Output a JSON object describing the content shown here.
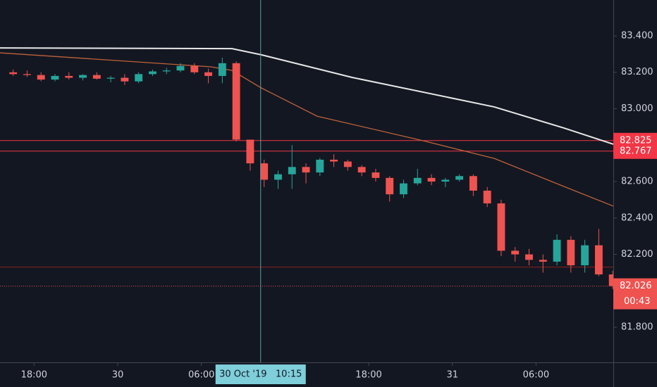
{
  "chart_data": {
    "type": "candlestick",
    "x": [
      -7.5,
      -6.5,
      -5.5,
      -4.5,
      -3.5,
      -2.5,
      -1.5,
      -0.5,
      0.5,
      1.5,
      2.5,
      3.5,
      4.5,
      5.5,
      6.5,
      7.5,
      8.5,
      9.5,
      10.5,
      11.5,
      12.5,
      13.5,
      14.5,
      15.5,
      16.5,
      17.5,
      18.5,
      19.5,
      20.5,
      21.5,
      22.5,
      23.5,
      24.5,
      25.5,
      26.5,
      27.5,
      28.5,
      29.5,
      30.5,
      31.5,
      32.5,
      33.5,
      34.5,
      35.5
    ],
    "open": [
      83.2,
      83.19,
      83.185,
      83.16,
      83.18,
      83.17,
      83.185,
      83.165,
      83.17,
      83.15,
      83.19,
      83.205,
      83.21,
      83.235,
      83.2,
      83.18,
      83.25,
      82.83,
      82.7,
      82.61,
      82.64,
      82.68,
      82.65,
      82.72,
      82.71,
      82.68,
      82.65,
      82.62,
      82.53,
      82.59,
      82.62,
      82.6,
      82.61,
      82.63,
      82.55,
      82.48,
      82.22,
      82.2,
      82.17,
      82.16,
      82.28,
      82.14,
      82.25,
      82.09
    ],
    "high": [
      83.215,
      83.21,
      83.2,
      83.19,
      83.2,
      83.19,
      83.2,
      83.18,
      83.19,
      83.2,
      83.215,
      83.225,
      83.25,
      83.25,
      83.22,
      83.28,
      83.26,
      82.83,
      82.72,
      82.66,
      82.8,
      82.7,
      82.73,
      82.75,
      82.72,
      82.69,
      82.67,
      82.63,
      82.61,
      82.67,
      82.64,
      82.62,
      82.64,
      82.64,
      82.57,
      82.5,
      82.24,
      82.23,
      82.2,
      82.31,
      82.3,
      82.28,
      82.34,
      82.11
    ],
    "low": [
      83.18,
      83.175,
      83.15,
      83.15,
      83.16,
      83.155,
      83.16,
      83.145,
      83.13,
      83.14,
      83.18,
      83.19,
      83.2,
      83.19,
      83.14,
      83.14,
      82.82,
      82.66,
      82.57,
      82.56,
      82.56,
      82.59,
      82.63,
      82.68,
      82.66,
      82.63,
      82.6,
      82.49,
      82.51,
      82.58,
      82.58,
      82.57,
      82.6,
      82.52,
      82.46,
      82.19,
      82.16,
      82.14,
      82.1,
      82.14,
      82.1,
      82.1,
      82.08,
      82.01
    ],
    "close": [
      83.19,
      83.185,
      83.16,
      83.18,
      83.17,
      83.185,
      83.165,
      83.17,
      83.15,
      83.19,
      83.205,
      83.21,
      83.235,
      83.2,
      83.18,
      83.25,
      82.83,
      82.7,
      82.61,
      82.64,
      82.68,
      82.65,
      82.72,
      82.71,
      82.68,
      82.65,
      82.62,
      82.53,
      82.59,
      82.62,
      82.6,
      82.61,
      82.63,
      82.55,
      82.48,
      82.22,
      82.2,
      82.17,
      82.16,
      82.28,
      82.14,
      82.25,
      82.09,
      82.026
    ],
    "up_color": "#26a69a",
    "down_color": "#ef5350",
    "series": [
      {
        "color": "#e8e8e8",
        "x": [
          -8.443,
          8.2,
          10.3,
          16.8,
          27,
          32,
          35.541
        ],
        "values": [
          83.334,
          83.33,
          83.296,
          83.172,
          83.01,
          82.894,
          82.805
        ]
      },
      {
        "color": "#c0623a",
        "x": [
          -8.443,
          6.7,
          8.2,
          10.3,
          14.3,
          21.9,
          27,
          32,
          35.541
        ],
        "values": [
          83.307,
          83.23,
          83.21,
          83.114,
          82.959,
          82.824,
          82.727,
          82.573,
          82.465
        ]
      }
    ],
    "price_lines": [
      {
        "value": 82.825,
        "label": "82.825",
        "color": "#f23645"
      },
      {
        "value": 82.767,
        "label": "82.767",
        "color": "#f23645"
      },
      {
        "value": 82.13,
        "color": "#8b2020"
      }
    ],
    "last_price": {
      "value": 82.026,
      "label": "82.026",
      "countdown": "00:43",
      "color": "#ef5350"
    },
    "crosshair": {
      "value": 10.25,
      "label": "30 Oct '19   10:15"
    },
    "xlim": [
      -8.443,
      35.541
    ],
    "ylim": [
      81.607,
      83.597
    ],
    "xticks": [
      {
        "value": -6,
        "label": "18:00"
      },
      {
        "value": 0,
        "label": "30"
      },
      {
        "value": 6,
        "label": "06:00"
      },
      {
        "value": 18,
        "label": "18:00"
      },
      {
        "value": 24,
        "label": "31"
      },
      {
        "value": 30,
        "label": "06:00"
      }
    ],
    "yticks": [
      {
        "value": 83.4,
        "label": "83.400"
      },
      {
        "value": 83.2,
        "label": "83.200"
      },
      {
        "value": 83.0,
        "label": "83.000"
      },
      {
        "value": 82.6,
        "label": "82.600"
      },
      {
        "value": 82.4,
        "label": "82.400"
      },
      {
        "value": 82.2,
        "label": "82.200"
      },
      {
        "value": 81.8,
        "label": "81.800"
      }
    ],
    "grid": false
  }
}
